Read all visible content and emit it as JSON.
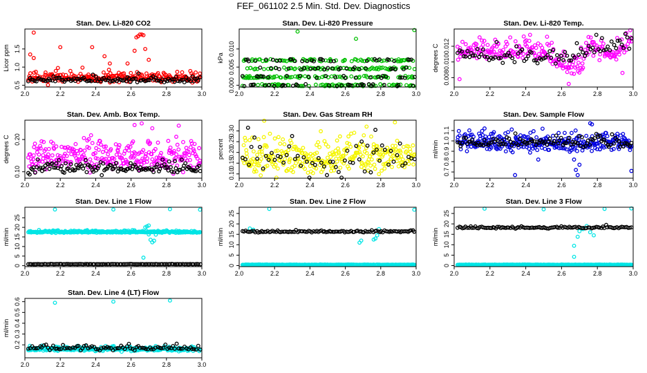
{
  "page": {
    "title": "FEF_061102  2.5 Min. Std. Dev. Diagnostics"
  },
  "chart_data": [
    {
      "type": "scatter",
      "title": "Stan. Dev. Li-820 CO2",
      "ylabel": "Licor ppm",
      "xlabel": "",
      "xlim": [
        2.0,
        3.0
      ],
      "ylim": [
        0.45,
        2.05
      ],
      "xticks": [
        2.0,
        2.2,
        2.4,
        2.6,
        2.8,
        3.0
      ],
      "yticks": [
        {
          "v": 0.5,
          "l": "0.5"
        },
        {
          "v": 1.0,
          "l": "1.0"
        },
        {
          "v": 1.5,
          "l": "1.5"
        }
      ],
      "series": [
        {
          "name": "primary",
          "color": "#ff0000",
          "n": 260,
          "base": 0.7,
          "noise": 0.09,
          "seed": 11,
          "spikes": [
            [
              2.05,
              1.95
            ],
            [
              2.03,
              1.35
            ],
            [
              2.05,
              1.25
            ],
            [
              2.2,
              1.55
            ],
            [
              2.38,
              1.55
            ],
            [
              2.45,
              1.3
            ],
            [
              2.62,
              1.45
            ],
            [
              2.63,
              1.82
            ],
            [
              2.64,
              1.85
            ],
            [
              2.65,
              1.9
            ],
            [
              2.66,
              1.9
            ],
            [
              2.67,
              1.88
            ],
            [
              2.68,
              1.5
            ],
            [
              2.7,
              1.2
            ],
            [
              2.58,
              1.1
            ],
            [
              2.48,
              1.1
            ]
          ]
        },
        {
          "name": "secondary",
          "color": "#000000",
          "n": 110,
          "base": 0.65,
          "noise": 0.05,
          "seed": 12,
          "spikes": []
        }
      ]
    },
    {
      "type": "scatter",
      "title": "Stan. Dev. Li-820 Pressure",
      "ylabel": "kPa",
      "xlabel": "",
      "xlim": [
        2.0,
        3.0
      ],
      "ylim": [
        -0.0005,
        0.0155
      ],
      "xticks": [
        2.0,
        2.2,
        2.4,
        2.6,
        2.8,
        3.0
      ],
      "yticks": [
        {
          "v": 0.0,
          "l": "0.000"
        },
        {
          "v": 0.005,
          "l": "0.005"
        },
        {
          "v": 0.01,
          "l": "0.010"
        }
      ],
      "series": [
        {
          "name": "primary",
          "color": "#00c000",
          "n": 300,
          "base": 0.004,
          "noise": 0.0026,
          "seed": 21,
          "levels": [
            0.0,
            0.0023,
            0.0046,
            0.0069
          ],
          "spikes": [
            [
              2.33,
              0.0148
            ],
            [
              2.66,
              0.0128
            ],
            [
              2.99,
              0.0152
            ]
          ]
        },
        {
          "name": "secondary",
          "color": "#000000",
          "n": 110,
          "base": 0.002,
          "noise": 0.0025,
          "seed": 22,
          "levels": [
            0.0,
            0.0023,
            0.0046,
            0.0069
          ],
          "spikes": []
        }
      ]
    },
    {
      "type": "scatter",
      "title": "Stan. Dev. Li-820 Temp.",
      "ylabel": "degrees C",
      "xlabel": "",
      "xlim": [
        2.0,
        3.0
      ],
      "ylim": [
        0.0068,
        0.0142
      ],
      "xticks": [
        2.0,
        2.2,
        2.4,
        2.6,
        2.8,
        3.0
      ],
      "yticks": [
        {
          "v": 0.008,
          "l": "0.008"
        },
        {
          "v": 0.01,
          "l": "0.010"
        },
        {
          "v": 0.012,
          "l": "0.012"
        }
      ],
      "series": [
        {
          "name": "primary",
          "color": "#ff00ff",
          "n": 260,
          "base": 0.0118,
          "noise": 0.0008,
          "seed": 31,
          "dip": [
            [
              2.0,
              0.0095
            ],
            [
              2.05,
              0.0115
            ],
            [
              2.5,
              0.0113
            ],
            [
              2.6,
              0.0098
            ],
            [
              2.7,
              0.0092
            ],
            [
              2.75,
              0.0118
            ],
            [
              2.9,
              0.0108
            ],
            [
              2.97,
              0.0128
            ]
          ],
          "spikes": [
            [
              2.03,
              0.0078
            ],
            [
              2.64,
              0.0072
            ],
            [
              2.94,
              0.0086
            ]
          ]
        },
        {
          "name": "secondary",
          "color": "#000000",
          "n": 90,
          "base": 0.012,
          "noise": 0.0007,
          "seed": 32,
          "dip": [
            [
              2.0,
              0.011
            ],
            [
              2.6,
              0.0105
            ],
            [
              2.7,
              0.0112
            ],
            [
              3.0,
              0.0126
            ]
          ],
          "spikes": []
        }
      ]
    },
    {
      "type": "scatter",
      "title": "Stan. Dev. Amb. Box Temp.",
      "ylabel": "degrees C",
      "xlabel": "",
      "xlim": [
        2.0,
        3.0
      ],
      "ylim": [
        0.08,
        0.26
      ],
      "xticks": [
        2.0,
        2.2,
        2.4,
        2.6,
        2.8,
        3.0
      ],
      "yticks": [
        {
          "v": 0.1,
          "l": "0.10"
        },
        {
          "v": 0.2,
          "l": "0.20"
        }
      ],
      "series": [
        {
          "name": "primary",
          "color": "#ff00ff",
          "n": 300,
          "base": 0.145,
          "noise": 0.03,
          "seed": 41,
          "spikes": [
            [
              2.66,
              0.25
            ],
            [
              2.62,
              0.245
            ],
            [
              2.72,
              0.235
            ]
          ]
        },
        {
          "name": "secondary",
          "color": "#000000",
          "n": 130,
          "base": 0.11,
          "noise": 0.012,
          "seed": 42,
          "spikes": []
        }
      ]
    },
    {
      "type": "scatter",
      "title": "Stan. Dev. Gas Stream RH",
      "ylabel": "percent",
      "xlabel": "",
      "xlim": [
        2.0,
        3.0
      ],
      "ylim": [
        0.08,
        0.35
      ],
      "xticks": [
        2.0,
        2.2,
        2.4,
        2.6,
        2.8,
        3.0
      ],
      "yticks": [
        {
          "v": 0.1,
          "l": "0.10"
        },
        {
          "v": 0.15,
          "l": "0.15"
        },
        {
          "v": 0.2,
          "l": "0.20"
        },
        {
          "v": 0.25,
          "l": "0.25"
        },
        {
          "v": 0.3,
          "l": "0.30"
        }
      ],
      "series": [
        {
          "name": "primary",
          "color": "#f5f500",
          "n": 320,
          "base": 0.175,
          "noise": 0.055,
          "seed": 51,
          "spikes": [
            [
              2.88,
              0.34
            ],
            [
              2.72,
              0.32
            ]
          ]
        },
        {
          "name": "secondary",
          "color": "#000000",
          "n": 60,
          "base": 0.17,
          "noise": 0.055,
          "seed": 52,
          "spikes": [
            [
              2.05,
              0.315
            ],
            [
              2.77,
              0.305
            ]
          ]
        }
      ]
    },
    {
      "type": "scatter",
      "title": "Stan. Dev. Sample Flow",
      "ylabel": "ml/min",
      "xlabel": "",
      "xlim": [
        2.0,
        3.0
      ],
      "ylim": [
        0.64,
        1.2
      ],
      "xticks": [
        2.0,
        2.2,
        2.4,
        2.6,
        2.8,
        3.0
      ],
      "yticks": [
        {
          "v": 0.7,
          "l": "0.7"
        },
        {
          "v": 0.8,
          "l": "0.8"
        },
        {
          "v": 0.9,
          "l": "0.9"
        },
        {
          "v": 1.0,
          "l": "1.0"
        },
        {
          "v": 1.1,
          "l": "1.1"
        }
      ],
      "series": [
        {
          "name": "primary",
          "color": "#0000e0",
          "n": 320,
          "base": 0.975,
          "noise": 0.055,
          "seed": 61,
          "spikes": [
            [
              2.69,
              0.67
            ],
            [
              2.68,
              0.72
            ],
            [
              2.7,
              0.77
            ],
            [
              2.67,
              0.82
            ],
            [
              2.99,
              0.71
            ],
            [
              2.47,
              0.82
            ],
            [
              2.76,
              1.17
            ],
            [
              2.77,
              1.16
            ],
            [
              2.17,
              1.12
            ],
            [
              2.34,
              0.67
            ]
          ]
        },
        {
          "name": "secondary",
          "color": "#000000",
          "n": 110,
          "base": 0.985,
          "noise": 0.035,
          "seed": 62,
          "spikes": []
        }
      ]
    },
    {
      "type": "scatter",
      "title": "Stan. Dev. Line 1 Flow",
      "ylabel": "ml/min",
      "xlabel": "",
      "xlim": [
        2.0,
        3.0
      ],
      "ylim": [
        -0.5,
        30.5
      ],
      "xticks": [
        2.0,
        2.2,
        2.4,
        2.6,
        2.8,
        3.0
      ],
      "yticks": [
        {
          "v": 0,
          "l": "0"
        },
        {
          "v": 5,
          "l": "5"
        },
        {
          "v": 10,
          "l": "10"
        },
        {
          "v": 15,
          "l": "15"
        },
        {
          "v": 20,
          "l": "20"
        },
        {
          "v": 25,
          "l": "25"
        }
      ],
      "series": [
        {
          "name": "primary",
          "color": "#00e5e5",
          "n": 320,
          "base": 17.6,
          "noise": 0.35,
          "seed": 71,
          "spikes": [
            [
              2.17,
              29.3
            ],
            [
              2.5,
              29.3
            ],
            [
              2.99,
              29.2
            ],
            [
              2.82,
              29.5
            ],
            [
              2.67,
              4.2
            ],
            [
              2.7,
              16.3
            ],
            [
              2.71,
              13.5
            ],
            [
              2.72,
              12.2
            ],
            [
              2.73,
              13.0
            ],
            [
              2.74,
              16.2
            ],
            [
              2.68,
              20.0
            ],
            [
              2.69,
              20.5
            ],
            [
              2.7,
              21.0
            ]
          ]
        },
        {
          "name": "secondary",
          "color": "#000000",
          "n": 110,
          "base": 0.8,
          "noise": 0.05,
          "seed": 72,
          "spikes": []
        }
      ]
    },
    {
      "type": "scatter",
      "title": "Stan. Dev. Line 2 Flow",
      "ylabel": "ml/min",
      "xlabel": "",
      "xlim": [
        2.0,
        3.0
      ],
      "ylim": [
        -0.5,
        28
      ],
      "xticks": [
        2.0,
        2.2,
        2.4,
        2.6,
        2.8,
        3.0
      ],
      "yticks": [
        {
          "v": 0,
          "l": "0"
        },
        {
          "v": 5,
          "l": "5"
        },
        {
          "v": 10,
          "l": "10"
        },
        {
          "v": 15,
          "l": "15"
        },
        {
          "v": 20,
          "l": "20"
        },
        {
          "v": 25,
          "l": "25"
        }
      ],
      "series": [
        {
          "name": "primary",
          "color": "#00e5e5",
          "n": 330,
          "base": 0.4,
          "noise": 0.05,
          "seed": 81,
          "spikes": [
            [
              2.17,
              27.2
            ],
            [
              2.99,
              26.8
            ],
            [
              2.68,
              11.0
            ],
            [
              2.69,
              12.0
            ],
            [
              2.76,
              12.5
            ],
            [
              2.77,
              13.0
            ],
            [
              2.78,
              14.5
            ],
            [
              2.79,
              17.5
            ],
            [
              2.06,
              17.8
            ],
            [
              2.08,
              17.2
            ]
          ]
        },
        {
          "name": "secondary",
          "color": "#000000",
          "n": 110,
          "base": 16.3,
          "noise": 0.3,
          "seed": 82,
          "spikes": []
        }
      ]
    },
    {
      "type": "scatter",
      "title": "Stan. Dev. Line 3 Flow",
      "ylabel": "ml/min",
      "xlabel": "",
      "xlim": [
        2.0,
        3.0
      ],
      "ylim": [
        -0.5,
        28
      ],
      "xticks": [
        2.0,
        2.2,
        2.4,
        2.6,
        2.8,
        3.0
      ],
      "yticks": [
        {
          "v": 0,
          "l": "0"
        },
        {
          "v": 5,
          "l": "5"
        },
        {
          "v": 10,
          "l": "10"
        },
        {
          "v": 15,
          "l": "15"
        },
        {
          "v": 20,
          "l": "20"
        },
        {
          "v": 25,
          "l": "25"
        }
      ],
      "series": [
        {
          "name": "primary",
          "color": "#00e5e5",
          "n": 330,
          "base": 0.4,
          "noise": 0.05,
          "seed": 91,
          "spikes": [
            [
              2.17,
              27.3
            ],
            [
              2.5,
              27.0
            ],
            [
              2.84,
              27.2
            ],
            [
              2.99,
              27.4
            ],
            [
              2.67,
              4.2
            ],
            [
              2.67,
              9.5
            ],
            [
              2.69,
              13.8
            ],
            [
              2.7,
              16.5
            ],
            [
              2.72,
              17.5
            ],
            [
              2.74,
              19.0
            ],
            [
              2.76,
              16.0
            ],
            [
              2.78,
              14.5
            ]
          ]
        },
        {
          "name": "secondary",
          "color": "#000000",
          "n": 110,
          "base": 18.2,
          "noise": 0.35,
          "seed": 92,
          "spikes": []
        }
      ]
    },
    {
      "type": "scatter",
      "title": "Stan. Dev. Line 4 (LT) Flow",
      "ylabel": "ml/min",
      "xlabel": "",
      "xlim": [
        2.0,
        3.0
      ],
      "ylim": [
        0.08,
        0.63
      ],
      "xticks": [
        2.0,
        2.2,
        2.4,
        2.6,
        2.8,
        3.0
      ],
      "yticks": [
        {
          "v": 0.2,
          "l": "0.2"
        },
        {
          "v": 0.3,
          "l": "0.3"
        },
        {
          "v": 0.4,
          "l": "0.4"
        },
        {
          "v": 0.5,
          "l": "0.5"
        },
        {
          "v": 0.6,
          "l": "0.6"
        }
      ],
      "series": [
        {
          "name": "primary",
          "color": "#00e5e5",
          "n": 320,
          "base": 0.16,
          "noise": 0.012,
          "seed": 101,
          "spikes": [
            [
              2.17,
              0.59
            ],
            [
              2.5,
              0.6
            ],
            [
              2.82,
              0.61
            ]
          ]
        },
        {
          "name": "secondary",
          "color": "#000000",
          "n": 90,
          "base": 0.17,
          "noise": 0.015,
          "seed": 102,
          "spikes": []
        }
      ]
    }
  ]
}
